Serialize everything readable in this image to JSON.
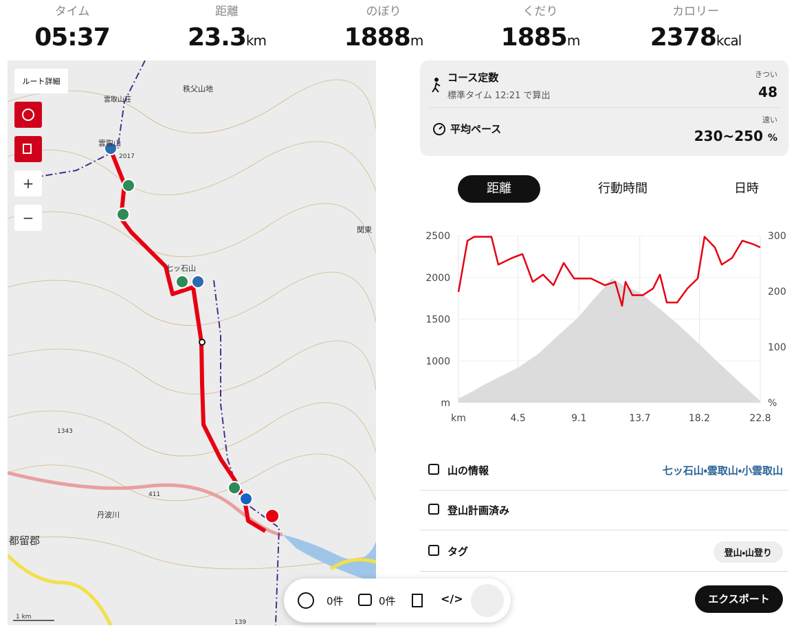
{
  "stats": [
    {
      "label": "タイム",
      "value": "05:37"
    },
    {
      "label": "距離",
      "value": "23.3",
      "unit": "km"
    },
    {
      "label": "のぼり",
      "value": "1888",
      "unit": "m"
    },
    {
      "label": "くだり",
      "value": "1885",
      "unit": "m"
    },
    {
      "label": "カロリー",
      "value": "2378",
      "unit": "kcal"
    }
  ],
  "map": {
    "route_detail_button": "ルート詳細",
    "labels": [
      "秩父山地",
      "雲取山荘",
      "雲取山",
      "2017",
      "七ッ石山",
      "関東",
      "都留郡",
      "丹波川",
      "1343",
      "411",
      "139"
    ],
    "scale": "1 km"
  },
  "course": {
    "title": "コース定数",
    "note": "標準タイム 12:21 で算出",
    "level_label": "きつい",
    "level_value": "48",
    "pace_title": "平均ペース",
    "pace_label": "速い",
    "pace_value": "230~250",
    "pace_unit": "%"
  },
  "tabs": [
    "距離",
    "行動時間",
    "日時"
  ],
  "active_tab": 0,
  "chart_data": {
    "type": "area-line",
    "series": [
      {
        "color": "#dcdcdc",
        "x": [
          0,
          1,
          2,
          3,
          4.5,
          6,
          7.5,
          9.1,
          10,
          11,
          11.6,
          12.5,
          13.7,
          15,
          16.5,
          18.2,
          19.5,
          21,
          22.8
        ],
        "values": [
          550,
          630,
          720,
          800,
          920,
          1080,
          1300,
          1530,
          1700,
          1880,
          1990,
          1900,
          1820,
          1650,
          1450,
          1200,
          1000,
          780,
          520
        ]
      },
      {
        "color": "#e60012",
        "axis": "y2",
        "x": [
          0,
          0.68,
          1.19,
          2.49,
          3.01,
          4.05,
          4.83,
          5.61,
          6.39,
          7.17,
          7.95,
          8.73,
          10.02,
          11.06,
          11.84,
          12.36,
          12.62,
          13.14,
          13.92,
          14.7,
          15.22,
          15.74,
          16.52,
          17.29,
          18.07,
          18.59,
          19.37,
          19.89,
          20.67,
          21.45,
          22.23,
          22.8
        ],
        "values": [
          199,
          291,
          298,
          298,
          248,
          260,
          267,
          217,
          230,
          211,
          251,
          223,
          223,
          211,
          217,
          174,
          217,
          193,
          193,
          205,
          230,
          180,
          180,
          205,
          223,
          298,
          279,
          248,
          260,
          291,
          285,
          279
        ]
      }
    ],
    "xlim": [
      0,
      22.8
    ],
    "xticks": [
      {
        "value": 0,
        "label": "km"
      },
      4.5,
      9.1,
      13.7,
      18.2,
      22.8
    ],
    "ylim": [
      500,
      2500
    ],
    "yticks": [
      {
        "value": 500,
        "label": "m"
      },
      1000,
      1500,
      2000,
      2500
    ],
    "y2lim": [
      0,
      300
    ],
    "y2ticks": [
      {
        "value": 0,
        "label": "%"
      },
      100,
      200,
      300
    ],
    "grid": true
  },
  "info": [
    {
      "label": "山の情報",
      "value": "七ッ石山・雲取山・小雲取山"
    },
    {
      "label": "登山計画済み"
    },
    {
      "label": "タグ",
      "value": "登山・山登り"
    }
  ],
  "toolbar": {
    "reactions": "0件",
    "comments": "0件"
  },
  "export_button": "エクスポート"
}
